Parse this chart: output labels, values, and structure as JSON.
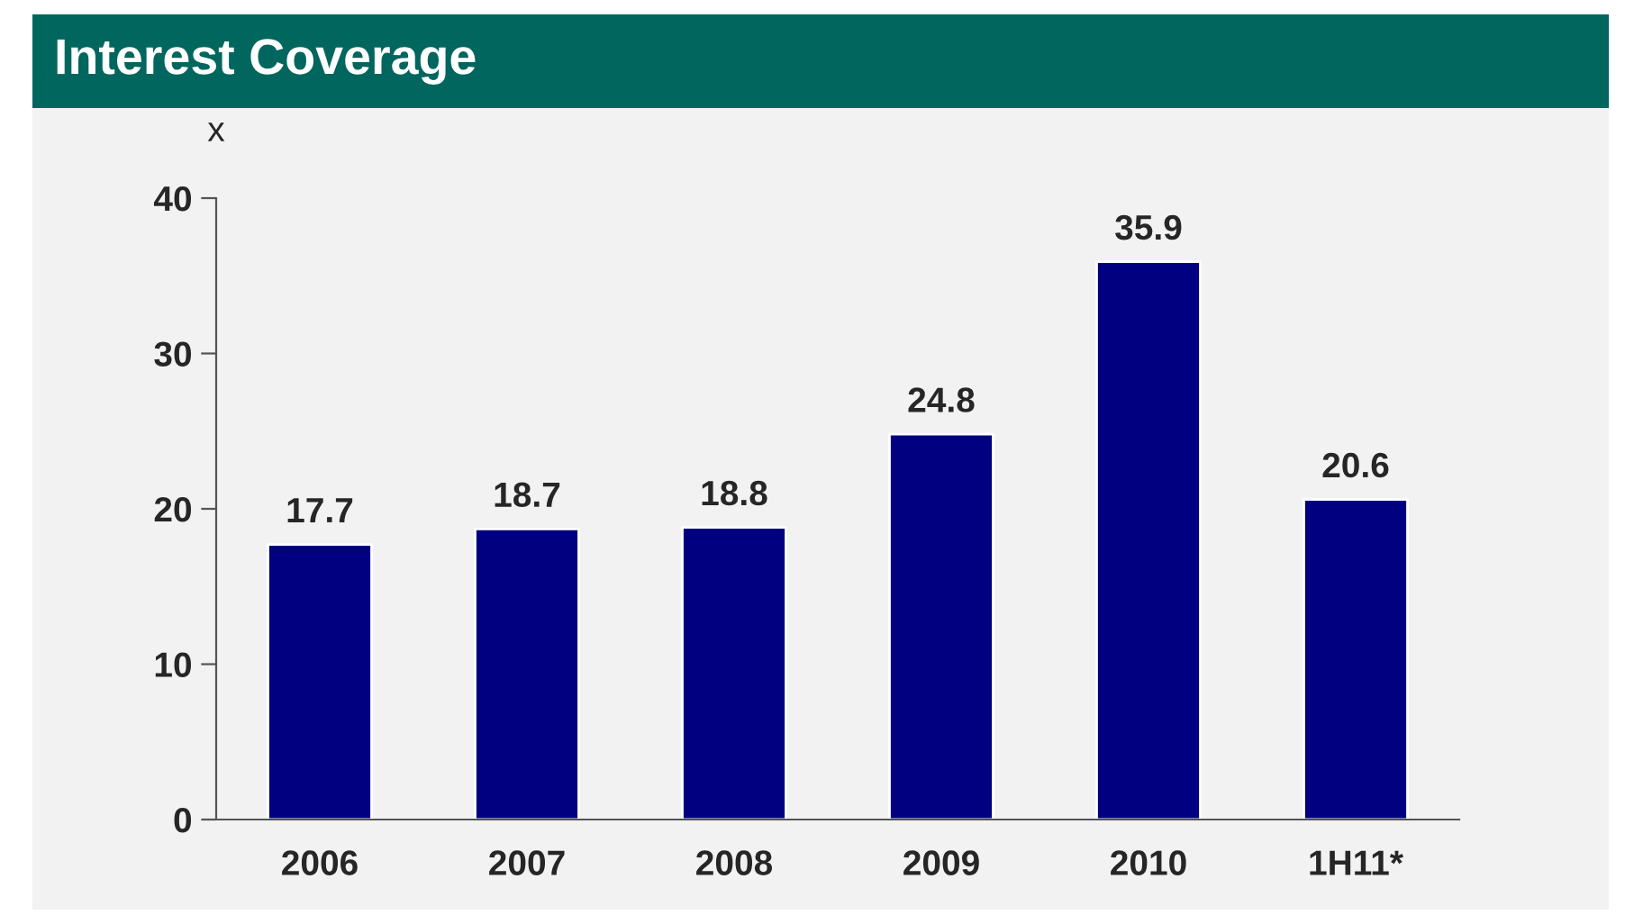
{
  "chart_data": {
    "type": "bar",
    "title": "Interest Coverage",
    "ylabel": "x",
    "categories": [
      "2006",
      "2007",
      "2008",
      "2009",
      "2010",
      "1H11*"
    ],
    "values": [
      17.7,
      18.7,
      18.8,
      24.8,
      35.9,
      20.6
    ],
    "color": "#000080",
    "ylim": [
      0,
      40
    ],
    "yticks": [
      0,
      10,
      20,
      30,
      40
    ],
    "grid": false,
    "data_labels": true
  }
}
